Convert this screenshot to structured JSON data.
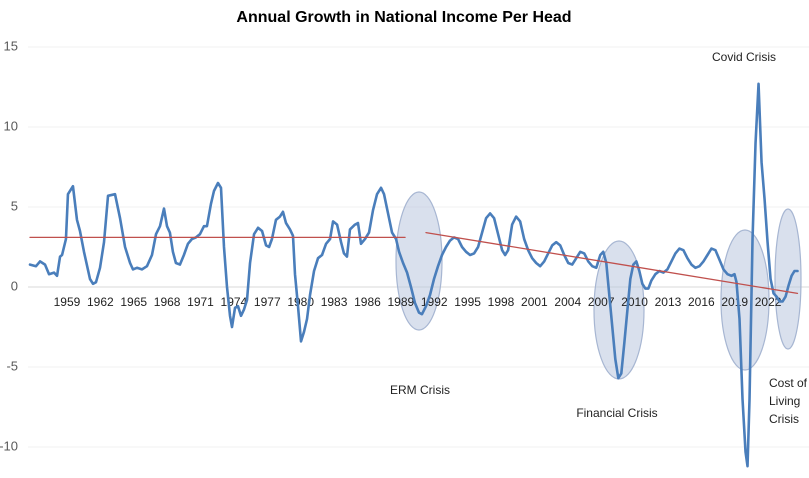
{
  "chart_data": {
    "type": "line",
    "title": "Annual Growth in National Income Per Head",
    "xlim": [
      1955.5,
      2025
    ],
    "ylim": [
      -10,
      15
    ],
    "xticks": [
      1959,
      1962,
      1965,
      1968,
      1971,
      1974,
      1977,
      1980,
      1983,
      1986,
      1989,
      1992,
      1995,
      1998,
      2001,
      2004,
      2007,
      2010,
      2013,
      2016,
      2019,
      2022
    ],
    "yticks": [
      -10,
      -5,
      0,
      5,
      10,
      15
    ],
    "grid": true,
    "x": [
      1955.68,
      1956.22,
      1956.58,
      1957.03,
      1957.39,
      1957.84,
      1958.11,
      1958.38,
      1958.56,
      1958.91,
      1959.09,
      1959.54,
      1959.9,
      1960.17,
      1960.53,
      1961.07,
      1961.34,
      1961.61,
      1961.97,
      1962.33,
      1962.69,
      1963.32,
      1963.77,
      1964.22,
      1964.67,
      1964.93,
      1965.29,
      1965.74,
      1966.19,
      1966.64,
      1967.0,
      1967.36,
      1967.72,
      1967.99,
      1968.25,
      1968.52,
      1968.79,
      1969.15,
      1969.51,
      1969.87,
      1970.23,
      1970.59,
      1970.95,
      1971.31,
      1971.58,
      1971.94,
      1972.21,
      1972.57,
      1972.84,
      1973.11,
      1973.38,
      1973.65,
      1973.83,
      1974.1,
      1974.37,
      1974.64,
      1974.91,
      1975.18,
      1975.45,
      1975.81,
      1976.17,
      1976.53,
      1976.89,
      1977.16,
      1977.42,
      1977.78,
      1978.14,
      1978.41,
      1978.68,
      1979.04,
      1979.31,
      1979.49,
      1979.76,
      1980.03,
      1980.3,
      1980.57,
      1980.84,
      1981.2,
      1981.56,
      1981.92,
      1982.28,
      1982.64,
      1982.91,
      1983.27,
      1983.63,
      1983.89,
      1984.16,
      1984.43,
      1984.88,
      1985.15,
      1985.42,
      1985.78,
      1986.14,
      1986.5,
      1986.86,
      1987.22,
      1987.49,
      1987.85,
      1988.21,
      1988.57,
      1988.84,
      1989.2,
      1989.56,
      1989.91,
      1990.27,
      1990.63,
      1990.9,
      1991.26,
      1991.62,
      1991.98,
      1992.34,
      1992.7,
      1993.06,
      1993.42,
      1993.78,
      1994.14,
      1994.5,
      1994.86,
      1995.22,
      1995.58,
      1995.94,
      1996.3,
      1996.66,
      1997.02,
      1997.38,
      1997.74,
      1998.1,
      1998.37,
      1998.64,
      1999.0,
      1999.36,
      1999.72,
      2000.08,
      2000.44,
      2000.8,
      2001.16,
      2001.52,
      2001.88,
      2002.24,
      2002.6,
      2002.96,
      2003.32,
      2003.68,
      2004.04,
      2004.4,
      2004.76,
      2005.12,
      2005.48,
      2005.84,
      2006.2,
      2006.56,
      2006.92,
      2007.19,
      2007.46,
      2007.73,
      2008.0,
      2008.27,
      2008.54,
      2008.81,
      2009.08,
      2009.35,
      2009.62,
      2009.89,
      2010.16,
      2010.43,
      2010.7,
      2010.97,
      2011.24,
      2011.51,
      2011.87,
      2012.23,
      2012.59,
      2012.95,
      2013.31,
      2013.67,
      2014.03,
      2014.39,
      2014.75,
      2015.11,
      2015.47,
      2015.83,
      2016.19,
      2016.55,
      2016.91,
      2017.27,
      2017.63,
      2017.99,
      2018.35,
      2018.71,
      2018.98,
      2019.16,
      2019.43,
      2019.7,
      2019.97,
      2020.15,
      2020.33,
      2020.6,
      2020.87,
      2021.14,
      2021.41,
      2021.68,
      2021.95,
      2022.22,
      2022.49,
      2022.76,
      2023.03,
      2023.3,
      2023.57,
      2023.84,
      2024.11,
      2024.37,
      2024.64
    ],
    "series": [
      {
        "color": "#4a7ebb",
        "values": [
          1.4,
          1.3,
          1.6,
          1.4,
          0.8,
          0.9,
          0.7,
          1.9,
          2.0,
          3.0,
          5.8,
          6.3,
          4.2,
          3.5,
          2.2,
          0.5,
          0.2,
          0.3,
          1.2,
          2.8,
          5.7,
          5.8,
          4.3,
          2.5,
          1.5,
          1.1,
          1.2,
          1.1,
          1.3,
          2.0,
          3.3,
          3.8,
          4.9,
          3.8,
          3.4,
          2.2,
          1.5,
          1.4,
          2.0,
          2.7,
          3.0,
          3.1,
          3.3,
          3.8,
          3.8,
          5.2,
          6.0,
          6.5,
          6.2,
          2.5,
          0.0,
          -1.8,
          -2.5,
          -1.3,
          -1.2,
          -1.8,
          -1.4,
          -0.8,
          1.5,
          3.3,
          3.7,
          3.5,
          2.6,
          2.5,
          3.0,
          4.2,
          4.4,
          4.7,
          4.0,
          3.6,
          3.2,
          0.8,
          -1.2,
          -3.4,
          -2.8,
          -2.0,
          -0.5,
          1.0,
          1.8,
          2.0,
          2.7,
          3.0,
          4.1,
          3.9,
          2.8,
          2.1,
          1.9,
          3.6,
          3.9,
          4.0,
          2.7,
          3.0,
          3.4,
          4.8,
          5.8,
          6.2,
          5.8,
          4.6,
          3.4,
          3.0,
          2.2,
          1.5,
          0.9,
          0.0,
          -1.0,
          -1.6,
          -1.7,
          -1.2,
          -0.5,
          0.5,
          1.3,
          2.0,
          2.5,
          2.9,
          3.1,
          3.0,
          2.5,
          2.2,
          2.0,
          2.1,
          2.5,
          3.4,
          4.3,
          4.6,
          4.3,
          3.3,
          2.3,
          2.0,
          2.3,
          3.9,
          4.4,
          4.1,
          3.0,
          2.3,
          1.8,
          1.5,
          1.3,
          1.6,
          2.1,
          2.6,
          2.8,
          2.6,
          2.0,
          1.5,
          1.4,
          1.8,
          2.2,
          2.1,
          1.6,
          1.3,
          1.2,
          2.0,
          2.2,
          1.5,
          -0.5,
          -2.5,
          -4.5,
          -5.7,
          -5.4,
          -3.5,
          -1.5,
          0.5,
          1.4,
          1.6,
          1.0,
          0.2,
          -0.1,
          -0.1,
          0.4,
          0.8,
          1.0,
          0.9,
          1.1,
          1.6,
          2.1,
          2.4,
          2.3,
          1.8,
          1.4,
          1.2,
          1.3,
          1.6,
          2.0,
          2.4,
          2.3,
          1.7,
          1.1,
          0.8,
          0.7,
          0.8,
          0.3,
          -2.0,
          -7.0,
          -10.3,
          -11.2,
          -7.0,
          3.0,
          9.0,
          12.7,
          7.8,
          5.5,
          2.8,
          0.5,
          -0.4,
          -0.6,
          -0.9,
          -0.9,
          -0.6,
          0.1,
          0.7,
          1.0,
          1.0
        ]
      }
    ],
    "trend_lines": [
      {
        "color": "#c0504d",
        "x": [
          1955.68,
          1989.38
        ],
        "values": [
          3.1,
          3.1
        ]
      },
      {
        "color": "#c0504d",
        "x": [
          1991.26,
          2024.64
        ],
        "values": [
          3.4,
          -0.4
        ]
      }
    ],
    "annotations": {
      "erm": "ERM Crisis",
      "financial": "Financial Crisis",
      "covid": "Covid Crisis",
      "cost_of_living": [
        "Cost of",
        "Living",
        "Crisis"
      ]
    }
  }
}
